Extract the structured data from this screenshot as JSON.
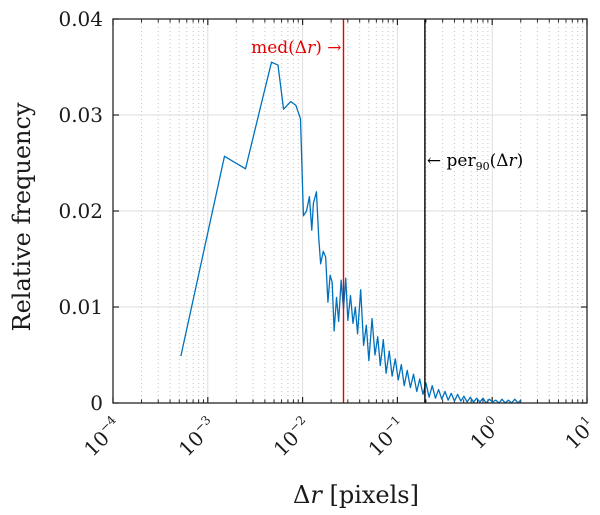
{
  "chart_data": {
    "type": "line",
    "xlabel": "Δr [pixels]",
    "ylabel": "Relative frequency",
    "xscale": "log",
    "xlim": [
      0.0001,
      10
    ],
    "ylim": [
      0,
      0.04
    ],
    "grid": "on",
    "x_ticks": [
      {
        "base": "10",
        "exp": "−4",
        "value": 0.0001
      },
      {
        "base": "10",
        "exp": "−3",
        "value": 0.001
      },
      {
        "base": "10",
        "exp": "−2",
        "value": 0.01
      },
      {
        "base": "10",
        "exp": "−1",
        "value": 0.1
      },
      {
        "base": "10",
        "exp": "0",
        "value": 1
      },
      {
        "base": "10",
        "exp": "1",
        "value": 10
      }
    ],
    "y_ticks": [
      {
        "label": "0",
        "value": 0
      },
      {
        "label": "0.01",
        "value": 0.01
      },
      {
        "label": "0.02",
        "value": 0.02
      },
      {
        "label": "0.03",
        "value": 0.03
      },
      {
        "label": "0.04",
        "value": 0.04
      }
    ],
    "series": [
      {
        "color": "#0072BD",
        "points": [
          [
            0.00052,
            0.0049
          ],
          [
            0.0015,
            0.0257
          ],
          [
            0.0025,
            0.0244
          ],
          [
            0.0038,
            0.0318
          ],
          [
            0.0047,
            0.0355
          ],
          [
            0.0055,
            0.0352
          ],
          [
            0.0063,
            0.0306
          ],
          [
            0.0075,
            0.0314
          ],
          [
            0.0085,
            0.031
          ],
          [
            0.0095,
            0.0296
          ],
          [
            0.0102,
            0.0195
          ],
          [
            0.011,
            0.02
          ],
          [
            0.0118,
            0.0215
          ],
          [
            0.0125,
            0.018
          ],
          [
            0.013,
            0.0208
          ],
          [
            0.014,
            0.022
          ],
          [
            0.0148,
            0.0172
          ],
          [
            0.0155,
            0.0145
          ],
          [
            0.0165,
            0.0158
          ],
          [
            0.0175,
            0.0152
          ],
          [
            0.0185,
            0.0105
          ],
          [
            0.0195,
            0.0133
          ],
          [
            0.0205,
            0.0126
          ],
          [
            0.0215,
            0.0075
          ],
          [
            0.0228,
            0.011
          ],
          [
            0.024,
            0.0085
          ],
          [
            0.0255,
            0.0128
          ],
          [
            0.027,
            0.0098
          ],
          [
            0.0285,
            0.013
          ],
          [
            0.03,
            0.0086
          ],
          [
            0.032,
            0.0112
          ],
          [
            0.034,
            0.0083
          ],
          [
            0.036,
            0.01
          ],
          [
            0.038,
            0.0072
          ],
          [
            0.041,
            0.0118
          ],
          [
            0.044,
            0.006
          ],
          [
            0.047,
            0.0081
          ],
          [
            0.05,
            0.0044
          ],
          [
            0.054,
            0.0088
          ],
          [
            0.058,
            0.005
          ],
          [
            0.062,
            0.0069
          ],
          [
            0.066,
            0.0039
          ],
          [
            0.071,
            0.0066
          ],
          [
            0.076,
            0.0031
          ],
          [
            0.082,
            0.0054
          ],
          [
            0.088,
            0.0028
          ],
          [
            0.095,
            0.0046
          ],
          [
            0.102,
            0.0024
          ],
          [
            0.11,
            0.004
          ],
          [
            0.118,
            0.0018
          ],
          [
            0.127,
            0.0034
          ],
          [
            0.137,
            0.0016
          ],
          [
            0.148,
            0.003
          ],
          [
            0.16,
            0.0012
          ],
          [
            0.172,
            0.0025
          ],
          [
            0.186,
            0.0009
          ],
          [
            0.2,
            0.0021
          ],
          [
            0.216,
            0.0006
          ],
          [
            0.233,
            0.0018
          ],
          [
            0.252,
            0.0005
          ],
          [
            0.272,
            0.0014
          ],
          [
            0.294,
            0.0004
          ],
          [
            0.318,
            0.0012
          ],
          [
            0.343,
            0.0003
          ],
          [
            0.37,
            0.001
          ],
          [
            0.4,
            0.0002
          ],
          [
            0.432,
            0.0009
          ],
          [
            0.467,
            0.0002
          ],
          [
            0.504,
            0.0007
          ],
          [
            0.544,
            0.0001
          ],
          [
            0.588,
            0.0006
          ],
          [
            0.635,
            0.0001
          ],
          [
            0.686,
            0.0005
          ],
          [
            0.741,
            0.0001
          ],
          [
            0.8,
            0.0005
          ],
          [
            0.864,
            0.0
          ],
          [
            0.933,
            0.0004
          ],
          [
            1.01,
            0.0001
          ],
          [
            1.09,
            0.0003
          ],
          [
            1.18,
            0.0
          ],
          [
            1.27,
            0.0004
          ],
          [
            1.37,
            0.0
          ],
          [
            1.48,
            0.0003
          ],
          [
            1.6,
            0.0
          ],
          [
            1.73,
            0.0004
          ],
          [
            1.87,
            0.0
          ],
          [
            2.0,
            0.0003
          ]
        ]
      }
    ],
    "reference_lines": [
      {
        "name": "med",
        "x": 0.027,
        "color": "#E60000",
        "label_main": "med(Δ",
        "label_var": "r",
        "label_tail": ") →"
      },
      {
        "name": "per90",
        "x": 0.195,
        "color": "#000000",
        "label_head": "← per",
        "label_sub": "90",
        "label_main": "(Δ",
        "label_var": "r",
        "label_tail": ")"
      }
    ]
  }
}
